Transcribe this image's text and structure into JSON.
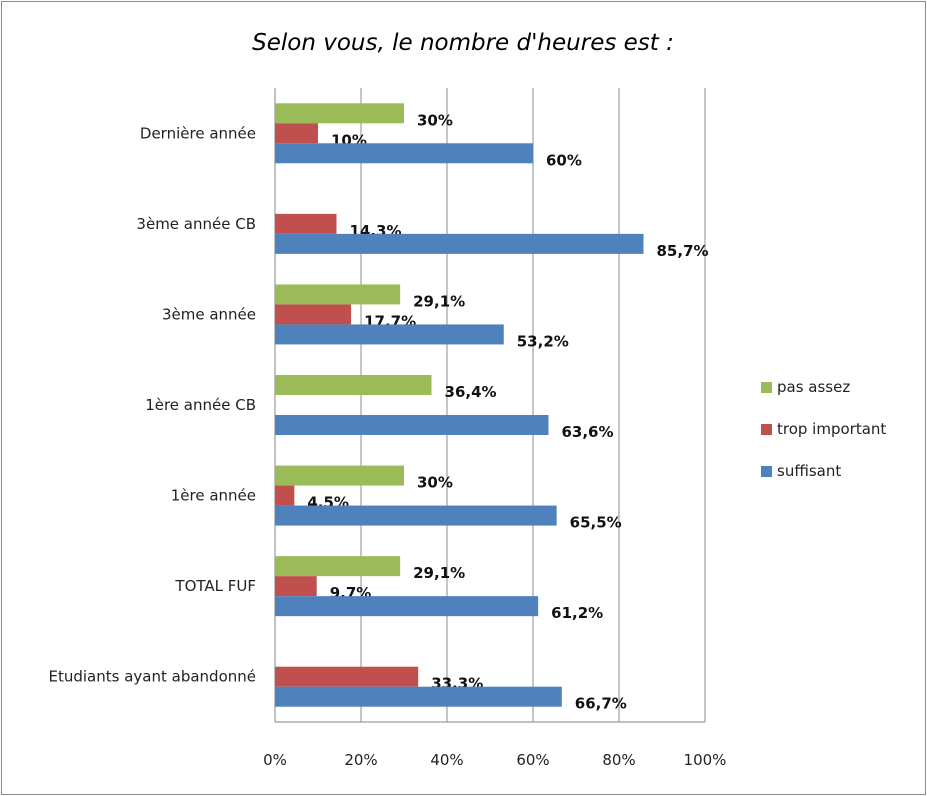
{
  "chart_data": {
    "type": "bar",
    "orientation": "horizontal",
    "title": "Selon vous, le nombre d'heures est :",
    "categories": [
      "Dernière année",
      "3ème année CB",
      "3ème année",
      "1ère année CB",
      "1ère année",
      "TOTAL FUF",
      "Etudiants ayant abandonné"
    ],
    "series": [
      {
        "name": "pas assez",
        "color": "#9bbb59",
        "values": [
          30,
          null,
          29.1,
          36.4,
          30,
          29.1,
          null
        ],
        "labels": [
          "30%",
          "",
          "29,1%",
          "36,4%",
          "30%",
          "29,1%",
          ""
        ]
      },
      {
        "name": "trop important",
        "color": "#c0504d",
        "values": [
          10,
          14.3,
          17.7,
          null,
          4.5,
          9.7,
          33.3
        ],
        "labels": [
          "10%",
          "14,3%",
          "17,7%",
          "",
          "4,5%",
          "9,7%",
          "33,3%"
        ]
      },
      {
        "name": "suffisant",
        "color": "#4f81bd",
        "values": [
          60,
          85.7,
          53.2,
          63.6,
          65.5,
          61.2,
          66.7
        ],
        "labels": [
          "60%",
          "85,7%",
          "53,2%",
          "63,6%",
          "65,5%",
          "61,2%",
          "66,7%"
        ]
      }
    ],
    "xlim": [
      0,
      100
    ],
    "xticks": [
      "0%",
      "20%",
      "40%",
      "60%",
      "80%",
      "100%"
    ],
    "grid": "vertical",
    "legend_position": "right",
    "legend_order": [
      "pas assez",
      "trop important",
      "suffisant"
    ]
  }
}
